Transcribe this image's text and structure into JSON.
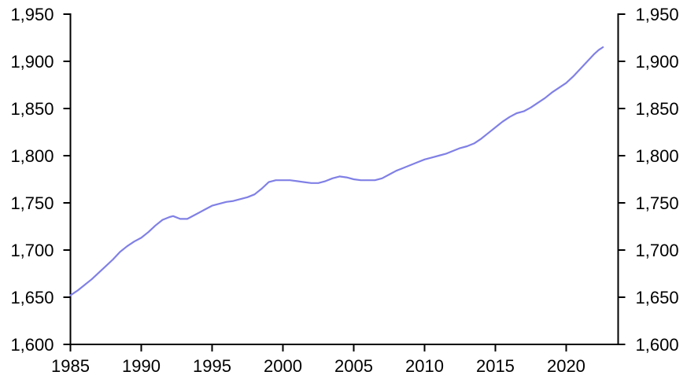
{
  "chart_data": {
    "type": "line",
    "title": "",
    "xlabel": "",
    "ylabel": "",
    "grid": false,
    "legend": "none",
    "y_axis_sides": [
      "left",
      "right"
    ],
    "xlim": [
      1985,
      2023.67
    ],
    "ylim": [
      1600,
      1950
    ],
    "x_ticks": {
      "values": [
        1985,
        1990,
        1995,
        2000,
        2005,
        2010,
        2015,
        2020
      ],
      "labels": [
        "1985",
        "1990",
        "1995",
        "2000",
        "2005",
        "2010",
        "2015",
        "2020"
      ]
    },
    "y_ticks": {
      "values": [
        1600,
        1650,
        1700,
        1750,
        1800,
        1850,
        1900,
        1950
      ],
      "labels": [
        "1,600",
        "1,650",
        "1,700",
        "1,750",
        "1,800",
        "1,850",
        "1,900",
        "1,950"
      ]
    },
    "colors": {
      "line": "#8080e6",
      "axis": "#000000",
      "text": "#000000",
      "background": "#ffffff"
    },
    "series": [
      {
        "name": "line-series",
        "x": [
          1985.0,
          1985.5,
          1986.0,
          1986.5,
          1987.0,
          1987.5,
          1988.0,
          1988.5,
          1989.0,
          1989.5,
          1990.0,
          1990.5,
          1991.0,
          1991.5,
          1992.0,
          1992.25,
          1992.75,
          1993.25,
          1993.75,
          1994.5,
          1995.0,
          1995.5,
          1996.0,
          1996.5,
          1997.0,
          1997.5,
          1998.0,
          1998.5,
          1999.0,
          1999.5,
          2000.0,
          2000.5,
          2001.0,
          2001.5,
          2002.0,
          2002.5,
          2003.0,
          2003.5,
          2004.0,
          2004.5,
          2005.0,
          2005.5,
          2006.0,
          2006.5,
          2007.0,
          2007.5,
          2008.0,
          2008.5,
          2009.0,
          2009.5,
          2010.0,
          2010.5,
          2011.0,
          2011.5,
          2012.0,
          2012.5,
          2013.0,
          2013.5,
          2014.0,
          2014.5,
          2015.0,
          2015.5,
          2016.0,
          2016.5,
          2017.0,
          2017.5,
          2018.0,
          2018.5,
          2019.0,
          2019.5,
          2020.0,
          2020.5,
          2021.0,
          2021.5,
          2022.0,
          2022.3,
          2022.6
        ],
        "values": [
          1652,
          1657,
          1663,
          1669,
          1676,
          1683,
          1690,
          1698,
          1704,
          1709,
          1713,
          1719,
          1726,
          1732,
          1735,
          1736,
          1733,
          1733,
          1737,
          1743,
          1747,
          1749,
          1751,
          1752,
          1754,
          1756,
          1759,
          1765,
          1772,
          1774,
          1774,
          1774,
          1773,
          1772,
          1771,
          1771,
          1773,
          1776,
          1778,
          1777,
          1775,
          1774,
          1774,
          1774,
          1776,
          1780,
          1784,
          1787,
          1790,
          1793,
          1796,
          1798,
          1800,
          1802,
          1805,
          1808,
          1810,
          1813,
          1818,
          1824,
          1830,
          1836,
          1841,
          1845,
          1847,
          1851,
          1856,
          1861,
          1867,
          1872,
          1877,
          1884,
          1892,
          1900,
          1908,
          1912,
          1915
        ]
      }
    ]
  }
}
